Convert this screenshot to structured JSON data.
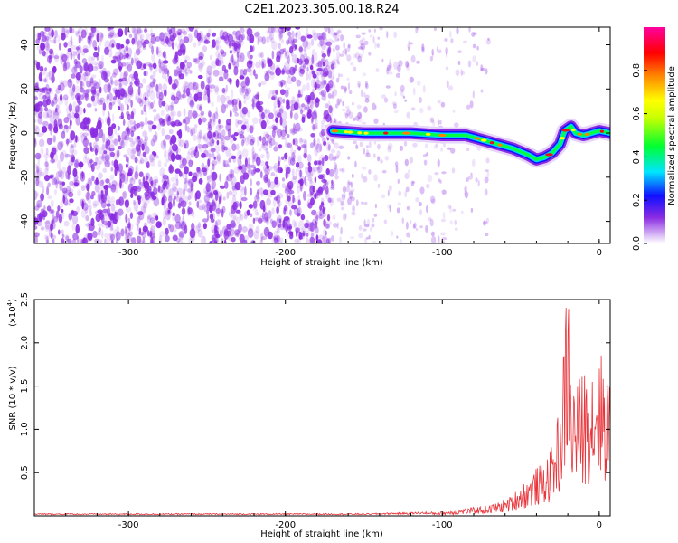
{
  "title": "C2E1.2023.305.00.18.R24",
  "chart_data": [
    {
      "type": "heatmap",
      "xlabel": "Height of straight line (km)",
      "ylabel": "Frequency (Hz)",
      "xlim": [
        -360,
        7
      ],
      "ylim": [
        -50,
        48
      ],
      "x_ticks": [
        -300,
        -200,
        -100,
        0
      ],
      "y_ticks": [
        -40,
        -20,
        0,
        20,
        40
      ],
      "noise_region_x": [
        -360,
        -170
      ],
      "sparse_region_x": [
        -170,
        -70
      ],
      "ridge": [
        {
          "x": -170,
          "y": 1
        },
        {
          "x": -150,
          "y": 0
        },
        {
          "x": -120,
          "y": 0
        },
        {
          "x": -100,
          "y": -1
        },
        {
          "x": -85,
          "y": -1
        },
        {
          "x": -70,
          "y": -4
        },
        {
          "x": -55,
          "y": -7
        },
        {
          "x": -45,
          "y": -10
        },
        {
          "x": -40,
          "y": -12
        },
        {
          "x": -35,
          "y": -11
        },
        {
          "x": -30,
          "y": -9
        },
        {
          "x": -25,
          "y": -5
        },
        {
          "x": -22,
          "y": 1
        },
        {
          "x": -18,
          "y": 3
        },
        {
          "x": -15,
          "y": 0
        },
        {
          "x": -10,
          "y": -1
        },
        {
          "x": -5,
          "y": 0
        },
        {
          "x": 0,
          "y": 1
        },
        {
          "x": 7,
          "y": 0
        }
      ],
      "colorbar": {
        "label": "Normalized spectral amplitude",
        "range": [
          0,
          1
        ],
        "ticks": [
          0.0,
          0.2,
          0.4,
          0.6,
          0.8
        ],
        "tick_labels": [
          "0.0",
          "0.2",
          "0.4",
          "0.6",
          "0.8"
        ]
      },
      "colors": {
        "noise": "#8a2be2",
        "ridge_core": "#e8101a"
      }
    },
    {
      "type": "line",
      "xlabel": "Height of straight line (km)",
      "ylabel": "SNR (10 * v/v)",
      "y_multiplier": "(x10",
      "y_multiplier_exp": "4",
      "y_multiplier_close": ")",
      "xlim": [
        -360,
        7
      ],
      "ylim": [
        0,
        2.5
      ],
      "x_ticks": [
        -300,
        -200,
        -100,
        0
      ],
      "y_ticks": [
        0.5,
        1.0,
        1.5,
        2.0,
        2.5
      ],
      "series": [
        {
          "color": "#e8343a",
          "x": [
            -360,
            -300,
            -250,
            -200,
            -150,
            -120,
            -100,
            -90,
            -80,
            -70,
            -60,
            -55,
            -50,
            -45,
            -40,
            -35,
            -30,
            -27,
            -24,
            -22,
            -20,
            -18,
            -15,
            -12,
            -9,
            -6,
            -3,
            0,
            3,
            7
          ],
          "y": [
            0.02,
            0.02,
            0.02,
            0.02,
            0.02,
            0.03,
            0.04,
            0.06,
            0.08,
            0.1,
            0.15,
            0.2,
            0.3,
            0.35,
            0.45,
            0.5,
            0.65,
            0.9,
            1.1,
            1.8,
            2.4,
            1.3,
            1.25,
            1.3,
            1.4,
            1.45,
            1.5,
            1.55,
            1.5,
            1.4
          ]
        }
      ]
    }
  ]
}
